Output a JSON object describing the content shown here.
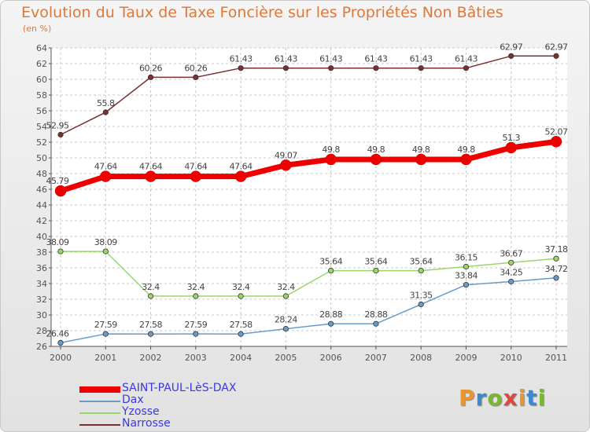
{
  "title": "Evolution du Taux de Taxe Foncière sur les Propriétés Non Bâties",
  "unit": "(en %)",
  "logo_text": "Proxiti",
  "colors": {
    "title": "#e0783a",
    "grid": "#c8c8c8",
    "axis": "#555555",
    "legend_text": "#3a3ae0"
  },
  "chart_data": {
    "type": "line",
    "title": "Evolution du Taux de Taxe Foncière sur les Propriétés Non Bâties",
    "ylabel": "(en %)",
    "xlabel": "",
    "ylim": [
      26,
      64
    ],
    "yticks": [
      26,
      28,
      30,
      32,
      34,
      36,
      38,
      40,
      42,
      44,
      46,
      48,
      50,
      52,
      54,
      56,
      58,
      60,
      62,
      64
    ],
    "grid": true,
    "legend_position": "bottom-left",
    "x": [
      "2000",
      "2001",
      "2002",
      "2003",
      "2004",
      "2005",
      "2006",
      "2007",
      "2008",
      "2009",
      "2010",
      "2011"
    ],
    "series": [
      {
        "name": "SAINT-PAUL-LèS-DAX",
        "color": "#ee0000",
        "width": 7,
        "marker": 7,
        "values": [
          45.79,
          47.64,
          47.64,
          47.64,
          47.64,
          49.07,
          49.8,
          49.8,
          49.8,
          49.8,
          51.3,
          52.07
        ],
        "labels": [
          "45.79",
          "47.64",
          "47.64",
          "47.64",
          "47.64",
          "49.07",
          "49.8",
          "49.8",
          "49.8",
          "49.8",
          "51.3",
          "52.07"
        ]
      },
      {
        "name": "Dax",
        "color": "#6a9cc8",
        "width": 1.5,
        "marker": 3.2,
        "values": [
          26.46,
          27.59,
          27.58,
          27.59,
          27.58,
          28.24,
          28.88,
          28.88,
          31.35,
          33.84,
          34.25,
          34.72
        ],
        "labels": [
          "26.46",
          "27.59",
          "27.58",
          "27.59",
          "27.58",
          "28.24",
          "28.88",
          "28.88",
          "31.35",
          "33.84",
          "34.25",
          "34.72"
        ]
      },
      {
        "name": "Yzosse",
        "color": "#9ad66a",
        "width": 1.5,
        "marker": 3.2,
        "values": [
          38.09,
          38.09,
          32.4,
          32.4,
          32.4,
          32.4,
          35.64,
          35.64,
          35.64,
          36.15,
          36.67,
          37.18
        ],
        "labels": [
          "38.09",
          "38.09",
          "32.4",
          "32.4",
          "32.4",
          "32.4",
          "35.64",
          "35.64",
          "35.64",
          "36.15",
          "36.67",
          "37.18"
        ]
      },
      {
        "name": "Narrosse",
        "color": "#7a3030",
        "width": 1.5,
        "marker": 3.2,
        "values": [
          52.95,
          55.8,
          60.26,
          60.26,
          61.43,
          61.43,
          61.43,
          61.43,
          61.43,
          61.43,
          62.97,
          62.97
        ],
        "labels": [
          "52.95",
          "55.8",
          "60.26",
          "60.26",
          "61.43",
          "61.43",
          "61.43",
          "61.43",
          "61.43",
          "61.43",
          "62.97",
          "62.97"
        ]
      }
    ]
  }
}
